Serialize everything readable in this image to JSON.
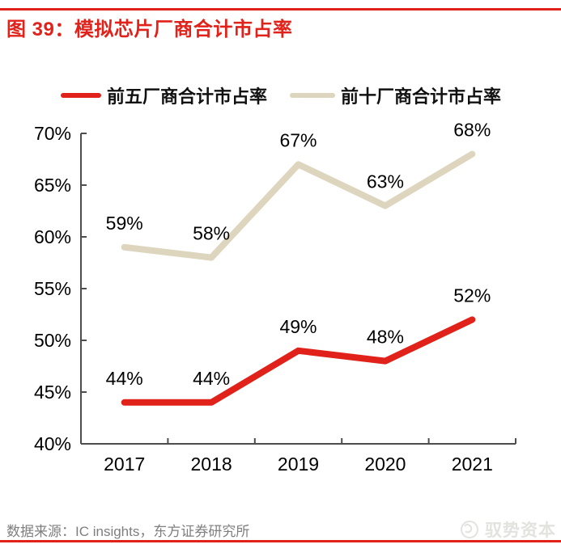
{
  "header": {
    "title": "图 39：模拟芯片厂商合计市占率"
  },
  "legend": {
    "items": [
      {
        "label": "前五厂商合计市占率",
        "color": "#e0221a"
      },
      {
        "label": "前十厂商合计市占率",
        "color": "#ddd5bd"
      }
    ]
  },
  "chart_data": {
    "type": "line",
    "title": "模拟芯片厂商合计市占率",
    "categories": [
      "2017",
      "2018",
      "2019",
      "2020",
      "2021"
    ],
    "series": [
      {
        "name": "前五厂商合计市占率",
        "color": "#e0221a",
        "values": [
          44,
          44,
          49,
          48,
          52
        ],
        "point_labels": [
          "44%",
          "44%",
          "49%",
          "48%",
          "52%"
        ]
      },
      {
        "name": "前十厂商合计市占率",
        "color": "#ddd5bd",
        "values": [
          59,
          58,
          67,
          63,
          68
        ],
        "point_labels": [
          "59%",
          "58%",
          "67%",
          "63%",
          "68%"
        ]
      }
    ],
    "y_axis": {
      "min": 40,
      "max": 70,
      "step": 5,
      "tick_labels": [
        "40%",
        "45%",
        "50%",
        "55%",
        "60%",
        "65%",
        "70%"
      ]
    },
    "x_axis": {
      "tick_labels": [
        "2017",
        "2018",
        "2019",
        "2020",
        "2021"
      ]
    },
    "grid": false,
    "legend_position": "top",
    "ylim": [
      40,
      70
    ]
  },
  "footer": {
    "source": "数据来源：IC insights，东方证券研究所",
    "watermark": "驭势资本"
  },
  "colors": {
    "accent_red": "#e0221a",
    "series_top10_beige": "#ddd5bd",
    "axis_gray": "#4d4d4d",
    "source_text_gray": "#7f7f7f",
    "watermark_gray": "#e2e2de"
  }
}
